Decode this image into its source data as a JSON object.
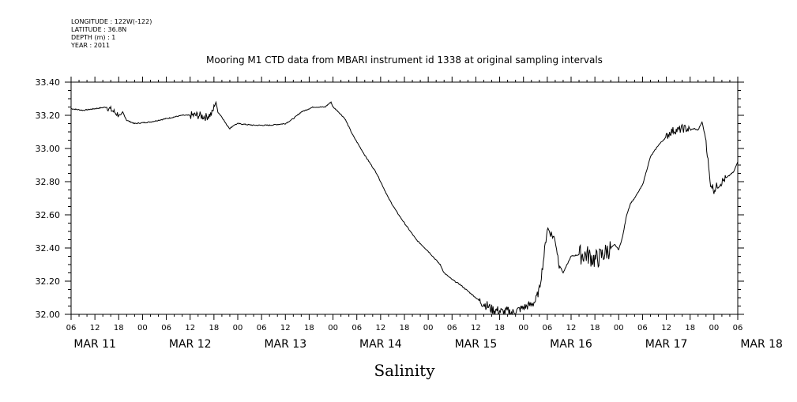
{
  "meta": {
    "longitude": "LONGITUDE : 122W(-122)",
    "latitude": "LATITUDE : 36.8N",
    "depth": "DEPTH (m) : 1",
    "year": "YEAR : 2011"
  },
  "chart_data": {
    "type": "line",
    "title": "Mooring M1 CTD data from MBARI instrument id 1338 at original sampling intervals",
    "xlabel": "Salinity",
    "ylabel": "",
    "ylim": [
      32.0,
      33.4
    ],
    "yticks": [
      "32.00",
      "32.20",
      "32.40",
      "32.60",
      "32.80",
      "33.00",
      "33.20",
      "33.40"
    ],
    "xlim_hours": [
      6,
      174
    ],
    "hour_ticks": [
      "06",
      "12",
      "18",
      "00",
      "06",
      "12",
      "18",
      "00",
      "06",
      "12",
      "18",
      "00",
      "06",
      "12",
      "18",
      "00",
      "06",
      "12",
      "18",
      "00",
      "06",
      "12",
      "18",
      "00",
      "06",
      "12",
      "18",
      "00",
      "06"
    ],
    "day_labels": [
      "MAR 11",
      "MAR 12",
      "MAR 13",
      "MAR 14",
      "MAR 15",
      "MAR 16",
      "MAR 17",
      "MAR 18"
    ],
    "grid": false,
    "series": [
      {
        "values_hours": [
          6,
          9,
          12,
          15,
          17.5,
          18.5,
          19,
          20,
          22,
          26,
          30,
          34,
          38,
          40,
          41.5,
          42.5,
          43,
          44,
          45,
          46,
          47,
          48,
          52,
          56,
          60,
          62,
          64,
          67,
          70,
          71.5,
          72,
          73,
          75,
          77,
          79,
          80,
          83,
          86,
          88,
          90,
          93,
          96,
          99,
          100,
          102,
          104,
          105,
          107,
          109,
          111,
          112,
          114,
          115,
          116,
          117,
          118,
          120,
          121,
          122,
          123,
          124,
          125,
          126,
          128,
          129,
          130,
          131,
          132,
          134,
          136,
          138,
          139,
          140,
          141,
          142,
          143,
          144,
          145,
          146,
          147,
          148,
          150,
          152,
          154,
          156,
          157,
          158,
          159,
          160,
          161,
          162,
          163,
          164,
          165,
          166,
          167,
          168,
          169,
          170,
          171,
          172,
          173,
          174
        ],
        "values_salinity": [
          33.24,
          33.23,
          33.24,
          33.25,
          33.21,
          33.2,
          33.22,
          33.17,
          33.15,
          33.16,
          33.18,
          33.2,
          33.2,
          33.19,
          33.21,
          33.28,
          33.22,
          33.19,
          33.15,
          33.12,
          33.14,
          33.15,
          33.14,
          33.14,
          33.15,
          33.18,
          33.22,
          33.25,
          33.25,
          33.28,
          33.25,
          33.23,
          33.18,
          33.08,
          33.0,
          32.96,
          32.85,
          32.7,
          32.62,
          32.55,
          32.45,
          32.38,
          32.3,
          32.25,
          32.21,
          32.18,
          32.16,
          32.12,
          32.08,
          32.05,
          32.03,
          32.02,
          32.01,
          32.02,
          32.01,
          32.02,
          32.04,
          32.05,
          32.06,
          32.08,
          32.15,
          32.32,
          32.52,
          32.45,
          32.3,
          32.25,
          32.3,
          32.35,
          32.36,
          32.36,
          32.33,
          32.34,
          32.36,
          32.38,
          32.4,
          32.42,
          32.39,
          32.47,
          32.6,
          32.67,
          32.7,
          32.78,
          32.95,
          33.02,
          33.07,
          33.1,
          33.11,
          33.11,
          33.12,
          33.12,
          33.11,
          33.12,
          33.11,
          33.16,
          33.05,
          32.8,
          32.75,
          32.78,
          32.8,
          32.82,
          32.84,
          32.86,
          32.92
        ]
      }
    ]
  }
}
